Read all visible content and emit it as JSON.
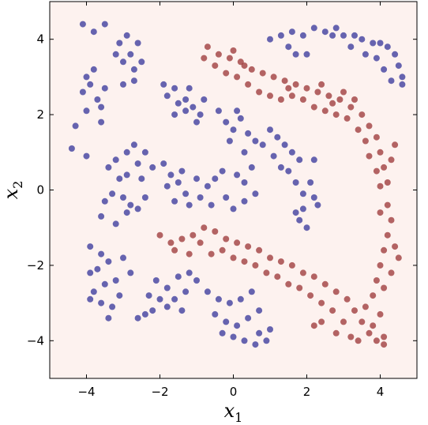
{
  "chart_data": {
    "type": "scatter",
    "title": "",
    "xlabel": "x",
    "xlabel_sub": "1",
    "ylabel": "x",
    "ylabel_sub": "2",
    "xlim": [
      -5,
      5
    ],
    "ylim": [
      -5,
      5
    ],
    "xticks": [
      -4,
      -2,
      0,
      2,
      4
    ],
    "yticks": [
      -4,
      -2,
      0,
      2,
      4
    ],
    "xtick_labels": [
      "−4",
      "−2",
      "0",
      "2",
      "4"
    ],
    "ytick_labels": [
      "−4",
      "−2",
      "0",
      "2",
      "4"
    ],
    "grid": false,
    "legend": "none",
    "background_color": "#fdf2ef",
    "series": [
      {
        "color": "#3b3b9c",
        "points": [
          [
            -4.1,
            4.4
          ],
          [
            -3.8,
            4.2
          ],
          [
            -3.5,
            4.4
          ],
          [
            -3.1,
            3.9
          ],
          [
            -2.8,
            3.6
          ],
          [
            -2.6,
            3.9
          ],
          [
            -3.0,
            3.4
          ],
          [
            -2.7,
            3.2
          ],
          [
            -3.2,
            3.6
          ],
          [
            -2.9,
            4.1
          ],
          [
            -2.5,
            3.4
          ],
          [
            -2.7,
            2.9
          ],
          [
            -3.0,
            2.8
          ],
          [
            -4.0,
            3.0
          ],
          [
            -3.8,
            3.2
          ],
          [
            -4.1,
            2.6
          ],
          [
            -3.7,
            2.4
          ],
          [
            -4.0,
            2.1
          ],
          [
            -3.6,
            1.8
          ],
          [
            -4.3,
            1.7
          ],
          [
            -4.4,
            1.1
          ],
          [
            -4.0,
            0.9
          ],
          [
            -3.5,
            2.7
          ],
          [
            -3.9,
            2.8
          ],
          [
            -3.6,
            2.2
          ],
          [
            -1.9,
            2.8
          ],
          [
            -1.6,
            2.7
          ],
          [
            -1.3,
            2.4
          ],
          [
            -1.1,
            2.2
          ],
          [
            -0.9,
            2.0
          ],
          [
            -1.5,
            2.3
          ],
          [
            -1.8,
            2.5
          ],
          [
            -1.2,
            2.7
          ],
          [
            -0.8,
            2.4
          ],
          [
            -1.6,
            2.0
          ],
          [
            -1.0,
            1.8
          ],
          [
            -1.3,
            2.1
          ],
          [
            -0.4,
            2.1
          ],
          [
            -0.2,
            1.8
          ],
          [
            0.0,
            1.6
          ],
          [
            0.2,
            1.9
          ],
          [
            0.1,
            2.1
          ],
          [
            0.4,
            1.5
          ],
          [
            0.6,
            1.3
          ],
          [
            -0.1,
            1.3
          ],
          [
            0.3,
            1.0
          ],
          [
            0.8,
            1.2
          ],
          [
            1.0,
            1.6
          ],
          [
            1.2,
            1.4
          ],
          [
            1.4,
            1.2
          ],
          [
            1.6,
            1.0
          ],
          [
            1.8,
            0.8
          ],
          [
            1.1,
            0.9
          ],
          [
            1.3,
            0.6
          ],
          [
            1.5,
            0.5
          ],
          [
            2.2,
            0.8
          ],
          [
            2.1,
            0.2
          ],
          [
            -3.4,
            0.6
          ],
          [
            -3.2,
            0.8
          ],
          [
            -2.9,
            1.0
          ],
          [
            -2.7,
            1.2
          ],
          [
            -2.4,
            1.0
          ],
          [
            -2.6,
            0.7
          ],
          [
            -2.9,
            0.4
          ],
          [
            -3.1,
            0.3
          ],
          [
            -2.5,
            0.3
          ],
          [
            -2.2,
            0.6
          ],
          [
            -3.0,
            -0.2
          ],
          [
            -3.3,
            -0.1
          ],
          [
            -2.8,
            -0.4
          ],
          [
            -2.4,
            -0.2
          ],
          [
            -2.6,
            -0.5
          ],
          [
            -2.9,
            -0.6
          ],
          [
            -3.5,
            -0.3
          ],
          [
            -3.6,
            -0.7
          ],
          [
            -3.2,
            -0.9
          ],
          [
            -1.9,
            0.7
          ],
          [
            -1.7,
            0.4
          ],
          [
            -1.5,
            0.2
          ],
          [
            -1.8,
            0.1
          ],
          [
            -1.3,
            -0.1
          ],
          [
            -1.6,
            -0.3
          ],
          [
            -1.2,
            -0.4
          ],
          [
            -0.9,
            -0.2
          ],
          [
            -0.7,
            0.1
          ],
          [
            -0.5,
            0.3
          ],
          [
            -0.3,
            0.5
          ],
          [
            -0.6,
            -0.4
          ],
          [
            -0.2,
            -0.2
          ],
          [
            0.1,
            0.4
          ],
          [
            0.3,
            0.2
          ],
          [
            0.0,
            -0.5
          ],
          [
            0.3,
            -0.3
          ],
          [
            0.6,
            -0.1
          ],
          [
            0.5,
            0.6
          ],
          [
            -1.0,
            0.3
          ],
          [
            -1.4,
            0.5
          ],
          [
            1.7,
            0.2
          ],
          [
            1.9,
            -0.1
          ],
          [
            2.2,
            -0.2
          ],
          [
            2.3,
            -0.4
          ],
          [
            1.9,
            -0.5
          ],
          [
            1.7,
            -0.6
          ],
          [
            1.8,
            -0.8
          ],
          [
            2.0,
            -1.0
          ],
          [
            -3.9,
            -1.5
          ],
          [
            -3.6,
            -1.7
          ],
          [
            -3.4,
            -1.9
          ],
          [
            -3.7,
            -2.1
          ],
          [
            -3.9,
            -2.2
          ],
          [
            -3.5,
            -2.5
          ],
          [
            -3.8,
            -2.7
          ],
          [
            -3.2,
            -2.4
          ],
          [
            -3.0,
            -1.8
          ],
          [
            -2.8,
            -2.2
          ],
          [
            -3.1,
            -2.8
          ],
          [
            -3.3,
            -3.1
          ],
          [
            -3.6,
            -3.0
          ],
          [
            -3.4,
            -3.4
          ],
          [
            -3.9,
            -2.9
          ],
          [
            -2.1,
            -2.4
          ],
          [
            -1.8,
            -2.6
          ],
          [
            -1.5,
            -2.3
          ],
          [
            -1.2,
            -2.2
          ],
          [
            -1.6,
            -2.9
          ],
          [
            -2.0,
            -2.9
          ],
          [
            -2.3,
            -2.8
          ],
          [
            -1.8,
            -3.1
          ],
          [
            -2.4,
            -3.3
          ],
          [
            -2.6,
            -3.4
          ],
          [
            -2.2,
            -3.2
          ],
          [
            -1.4,
            -3.2
          ],
          [
            -1.0,
            -2.4
          ],
          [
            -1.3,
            -2.7
          ],
          [
            -0.7,
            -2.7
          ],
          [
            -0.4,
            -2.9
          ],
          [
            -0.1,
            -3.0
          ],
          [
            0.2,
            -2.9
          ],
          [
            0.5,
            -2.7
          ],
          [
            -0.5,
            -3.3
          ],
          [
            -0.2,
            -3.5
          ],
          [
            0.1,
            -3.6
          ],
          [
            0.4,
            -3.4
          ],
          [
            0.7,
            -3.2
          ],
          [
            -0.3,
            -3.8
          ],
          [
            0.0,
            -3.9
          ],
          [
            0.3,
            -4.0
          ],
          [
            0.7,
            -3.8
          ],
          [
            0.9,
            -4.0
          ],
          [
            1.0,
            -3.7
          ],
          [
            0.6,
            -4.1
          ],
          [
            1.0,
            4.0
          ],
          [
            1.3,
            4.1
          ],
          [
            1.6,
            4.2
          ],
          [
            1.9,
            4.1
          ],
          [
            2.2,
            4.3
          ],
          [
            2.5,
            4.2
          ],
          [
            2.8,
            4.3
          ],
          [
            2.7,
            4.1
          ],
          [
            3.0,
            4.1
          ],
          [
            3.3,
            4.1
          ],
          [
            3.5,
            4.0
          ],
          [
            3.8,
            3.9
          ],
          [
            4.0,
            3.9
          ],
          [
            4.2,
            3.8
          ],
          [
            4.4,
            3.6
          ],
          [
            4.5,
            3.3
          ],
          [
            4.6,
            3.0
          ],
          [
            4.3,
            2.9
          ],
          [
            4.1,
            3.2
          ],
          [
            3.6,
            3.6
          ],
          [
            3.2,
            3.8
          ],
          [
            1.7,
            3.6
          ],
          [
            2.0,
            3.6
          ],
          [
            1.5,
            3.8
          ],
          [
            4.6,
            2.8
          ],
          [
            3.9,
            3.5
          ]
        ]
      },
      {
        "color": "#9e3b3b",
        "points": [
          [
            -0.7,
            3.8
          ],
          [
            -0.4,
            3.6
          ],
          [
            -0.1,
            3.5
          ],
          [
            0.2,
            3.4
          ],
          [
            0.5,
            3.2
          ],
          [
            0.8,
            3.1
          ],
          [
            1.1,
            3.0
          ],
          [
            1.4,
            2.9
          ],
          [
            1.7,
            2.8
          ],
          [
            2.0,
            2.7
          ],
          [
            2.3,
            2.6
          ],
          [
            2.6,
            2.5
          ],
          [
            2.9,
            2.4
          ],
          [
            3.2,
            2.2
          ],
          [
            3.5,
            2.0
          ],
          [
            3.7,
            1.7
          ],
          [
            3.9,
            1.4
          ],
          [
            4.0,
            1.0
          ],
          [
            4.1,
            0.6
          ],
          [
            4.2,
            0.2
          ],
          [
            -0.5,
            3.3
          ],
          [
            -0.2,
            3.1
          ],
          [
            0.1,
            3.0
          ],
          [
            0.4,
            2.8
          ],
          [
            0.7,
            2.6
          ],
          [
            1.0,
            2.5
          ],
          [
            1.3,
            2.4
          ],
          [
            1.6,
            2.5
          ],
          [
            1.9,
            2.4
          ],
          [
            2.2,
            2.2
          ],
          [
            2.5,
            2.1
          ],
          [
            2.8,
            2.0
          ],
          [
            3.1,
            1.9
          ],
          [
            3.4,
            1.6
          ],
          [
            3.6,
            1.3
          ],
          [
            3.7,
            0.9
          ],
          [
            3.9,
            0.5
          ],
          [
            4.0,
            0.1
          ],
          [
            4.3,
            0.8
          ],
          [
            4.4,
            1.2
          ],
          [
            -0.8,
            3.5
          ],
          [
            0.0,
            3.7
          ],
          [
            0.3,
            3.3
          ],
          [
            1.5,
            2.7
          ],
          [
            2.4,
            2.8
          ],
          [
            3.0,
            2.6
          ],
          [
            3.3,
            2.4
          ],
          [
            2.7,
            2.3
          ],
          [
            -2.0,
            -1.2
          ],
          [
            -1.7,
            -1.4
          ],
          [
            -1.4,
            -1.3
          ],
          [
            -1.1,
            -1.2
          ],
          [
            -0.8,
            -1.0
          ],
          [
            -0.5,
            -1.1
          ],
          [
            -0.2,
            -1.3
          ],
          [
            0.1,
            -1.4
          ],
          [
            0.4,
            -1.5
          ],
          [
            0.7,
            -1.6
          ],
          [
            1.0,
            -1.8
          ],
          [
            1.3,
            -1.9
          ],
          [
            1.6,
            -2.0
          ],
          [
            1.9,
            -2.2
          ],
          [
            2.2,
            -2.3
          ],
          [
            2.5,
            -2.5
          ],
          [
            2.8,
            -2.7
          ],
          [
            3.1,
            -2.9
          ],
          [
            3.3,
            -3.2
          ],
          [
            3.5,
            -3.5
          ],
          [
            3.7,
            -3.8
          ],
          [
            3.9,
            -4.0
          ],
          [
            4.1,
            -4.1
          ],
          [
            -1.6,
            -1.6
          ],
          [
            -1.2,
            -1.7
          ],
          [
            -0.9,
            -1.4
          ],
          [
            -0.6,
            -1.7
          ],
          [
            -0.3,
            -1.6
          ],
          [
            0.0,
            -1.8
          ],
          [
            0.3,
            -1.9
          ],
          [
            0.6,
            -2.0
          ],
          [
            0.9,
            -2.2
          ],
          [
            1.2,
            -2.3
          ],
          [
            1.5,
            -2.5
          ],
          [
            1.8,
            -2.6
          ],
          [
            2.1,
            -2.8
          ],
          [
            2.4,
            -3.0
          ],
          [
            2.7,
            -3.2
          ],
          [
            3.0,
            -3.5
          ],
          [
            3.2,
            -3.9
          ],
          [
            2.2,
            -3.6
          ],
          [
            2.4,
            -3.5
          ],
          [
            2.8,
            -3.8
          ],
          [
            3.4,
            -4.0
          ],
          [
            3.6,
            -3.1
          ],
          [
            3.8,
            -2.8
          ],
          [
            3.9,
            -2.4
          ],
          [
            4.0,
            -2.0
          ],
          [
            4.1,
            -1.6
          ],
          [
            4.2,
            -1.2
          ],
          [
            4.3,
            -0.8
          ],
          [
            4.2,
            -0.4
          ],
          [
            4.0,
            -0.6
          ],
          [
            4.4,
            -1.5
          ],
          [
            4.3,
            -2.2
          ],
          [
            4.1,
            -2.6
          ],
          [
            4.0,
            -3.3
          ],
          [
            3.8,
            -3.6
          ],
          [
            4.1,
            -3.9
          ],
          [
            4.5,
            -1.8
          ]
        ]
      }
    ]
  }
}
